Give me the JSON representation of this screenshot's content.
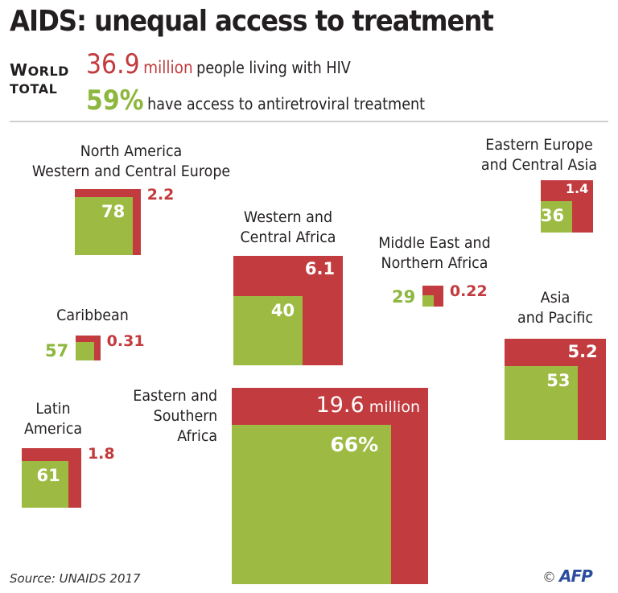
{
  "header": {
    "title": "AIDS: unequal access to treatment",
    "world_label_1": "World",
    "world_label_2": "Total",
    "total_value": "36.9",
    "total_unit": "million",
    "total_desc": "people living with HIV",
    "access_value": "59%",
    "access_desc": "have access to antiretroviral treatment"
  },
  "colors": {
    "hiv_red": "#c23b3e",
    "treatment_green": "#9dbb42",
    "text_dark": "#231f20",
    "afp_blue": "#2a4d9e"
  },
  "chart_data": {
    "type": "proportional-area squares",
    "title": "AIDS: unequal access to treatment",
    "encoding": "Red square area = people living with HIV (millions); green inner square area = % with access to antiretroviral treatment",
    "world_total": {
      "people_living_with_hiv_millions": 36.9,
      "access_pct": 59
    },
    "regions": [
      {
        "id": "na-wce",
        "name": "North America\nWestern and Central Europe",
        "hiv_millions": 2.2,
        "hiv_label": "2.2",
        "access_pct": 78,
        "access_label": "78"
      },
      {
        "id": "eeca",
        "name": "Eastern Europe\nand Central Asia",
        "hiv_millions": 1.4,
        "hiv_label": "1.4",
        "access_pct": 36,
        "access_label": "36"
      },
      {
        "id": "wca",
        "name": "Western and\nCentral Africa",
        "hiv_millions": 6.1,
        "hiv_label": "6.1",
        "access_pct": 40,
        "access_label": "40"
      },
      {
        "id": "mena",
        "name": "Middle East and\nNorthern Africa",
        "hiv_millions": 0.22,
        "hiv_label": "0.22",
        "access_pct": 29,
        "access_label": "29"
      },
      {
        "id": "caribbean",
        "name": "Caribbean",
        "hiv_millions": 0.31,
        "hiv_label": "0.31",
        "access_pct": 57,
        "access_label": "57"
      },
      {
        "id": "ap",
        "name": "Asia\nand Pacific",
        "hiv_millions": 5.2,
        "hiv_label": "5.2",
        "access_pct": 53,
        "access_label": "53"
      },
      {
        "id": "la",
        "name": "Latin\nAmerica",
        "hiv_millions": 1.8,
        "hiv_label": "1.8",
        "access_pct": 61,
        "access_label": "61"
      },
      {
        "id": "esa",
        "name": "Eastern and\nSouthern\nAfrica",
        "hiv_millions": 19.6,
        "hiv_label": "19.6",
        "hiv_unit": "million",
        "access_pct": 66,
        "access_label": "66%"
      }
    ]
  },
  "footer": {
    "source": "Source: UNAIDS 2017",
    "copyright": "©",
    "credit": "AFP"
  }
}
